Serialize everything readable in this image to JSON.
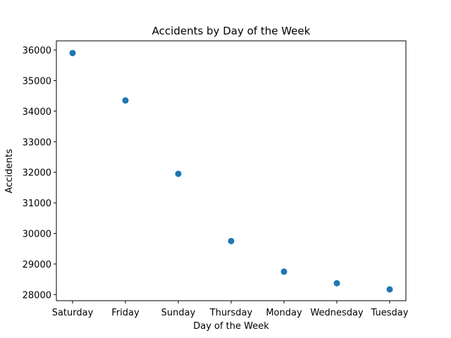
{
  "chart_data": {
    "type": "scatter",
    "title": "Accidents by Day of the Week",
    "xlabel": "Day of the Week",
    "ylabel": "Accidents",
    "categories": [
      "Saturday",
      "Friday",
      "Sunday",
      "Thursday",
      "Monday",
      "Wednesday",
      "Tuesday"
    ],
    "values": [
      35900,
      34350,
      31950,
      29750,
      28750,
      28370,
      28170
    ],
    "ylim": [
      27800,
      36300
    ],
    "yticks": [
      28000,
      29000,
      30000,
      31000,
      32000,
      33000,
      34000,
      35000,
      36000
    ],
    "grid": false,
    "marker_color": "#1f77b4"
  }
}
